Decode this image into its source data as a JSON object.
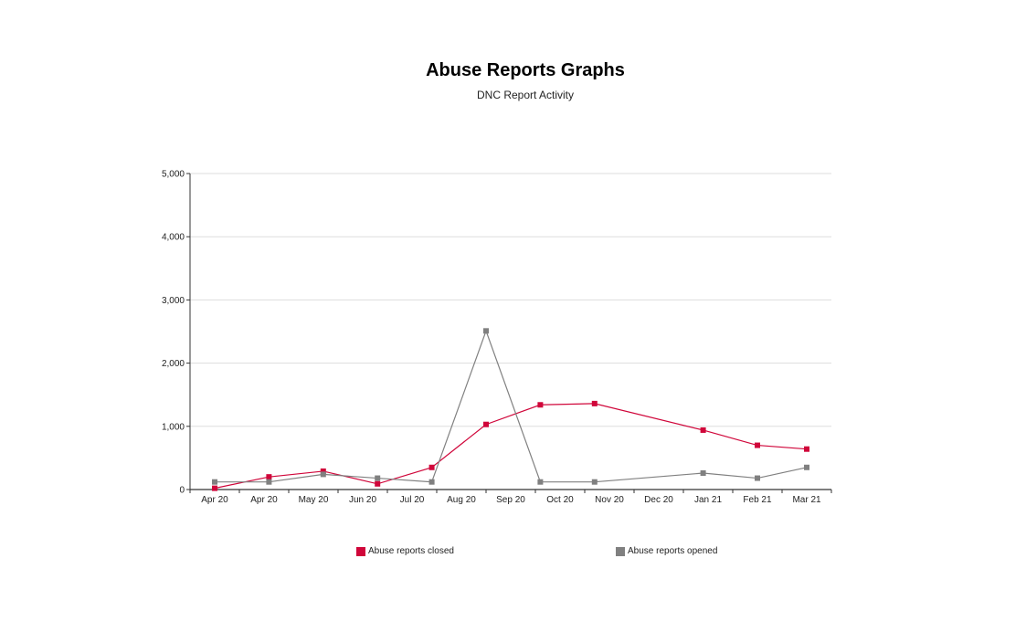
{
  "title": "Abuse Reports Graphs",
  "subtitle": "DNC Report Activity",
  "chart_data": {
    "type": "line",
    "categories": [
      "Apr 20",
      "Apr 20",
      "May 20",
      "Jun 20",
      "Jul 20",
      "Aug 20",
      "Sep 20",
      "Oct 20",
      "Nov 20",
      "Dec 20",
      "Jan 21",
      "Feb 21",
      "Mar 21"
    ],
    "ylim": [
      0,
      5000
    ],
    "yticks": [
      0,
      1000,
      2000,
      3000,
      4000,
      5000
    ],
    "ytick_labels": [
      "0",
      "1,000",
      "2,000",
      "3,000",
      "4,000",
      "5,000"
    ],
    "grid": true,
    "legend_position": "bottom",
    "series": [
      {
        "name": "Abuse reports closed",
        "color": "#d0063a",
        "points": [
          {
            "x": 0.0,
            "y": 20
          },
          {
            "x": 1.1,
            "y": 200
          },
          {
            "x": 2.2,
            "y": 290
          },
          {
            "x": 3.3,
            "y": 90
          },
          {
            "x": 4.4,
            "y": 350
          },
          {
            "x": 5.5,
            "y": 1030
          },
          {
            "x": 6.6,
            "y": 1340
          },
          {
            "x": 7.7,
            "y": 1360
          },
          {
            "x": 9.9,
            "y": 940
          },
          {
            "x": 11.0,
            "y": 700
          },
          {
            "x": 12.0,
            "y": 640
          }
        ]
      },
      {
        "name": "Abuse reports opened",
        "color": "#808080",
        "points": [
          {
            "x": 0.0,
            "y": 120
          },
          {
            "x": 1.1,
            "y": 120
          },
          {
            "x": 2.2,
            "y": 240
          },
          {
            "x": 3.3,
            "y": 180
          },
          {
            "x": 4.4,
            "y": 120
          },
          {
            "x": 5.5,
            "y": 2510
          },
          {
            "x": 6.6,
            "y": 120
          },
          {
            "x": 7.7,
            "y": 120
          },
          {
            "x": 9.9,
            "y": 260
          },
          {
            "x": 11.0,
            "y": 180
          },
          {
            "x": 12.0,
            "y": 350
          }
        ]
      }
    ]
  }
}
